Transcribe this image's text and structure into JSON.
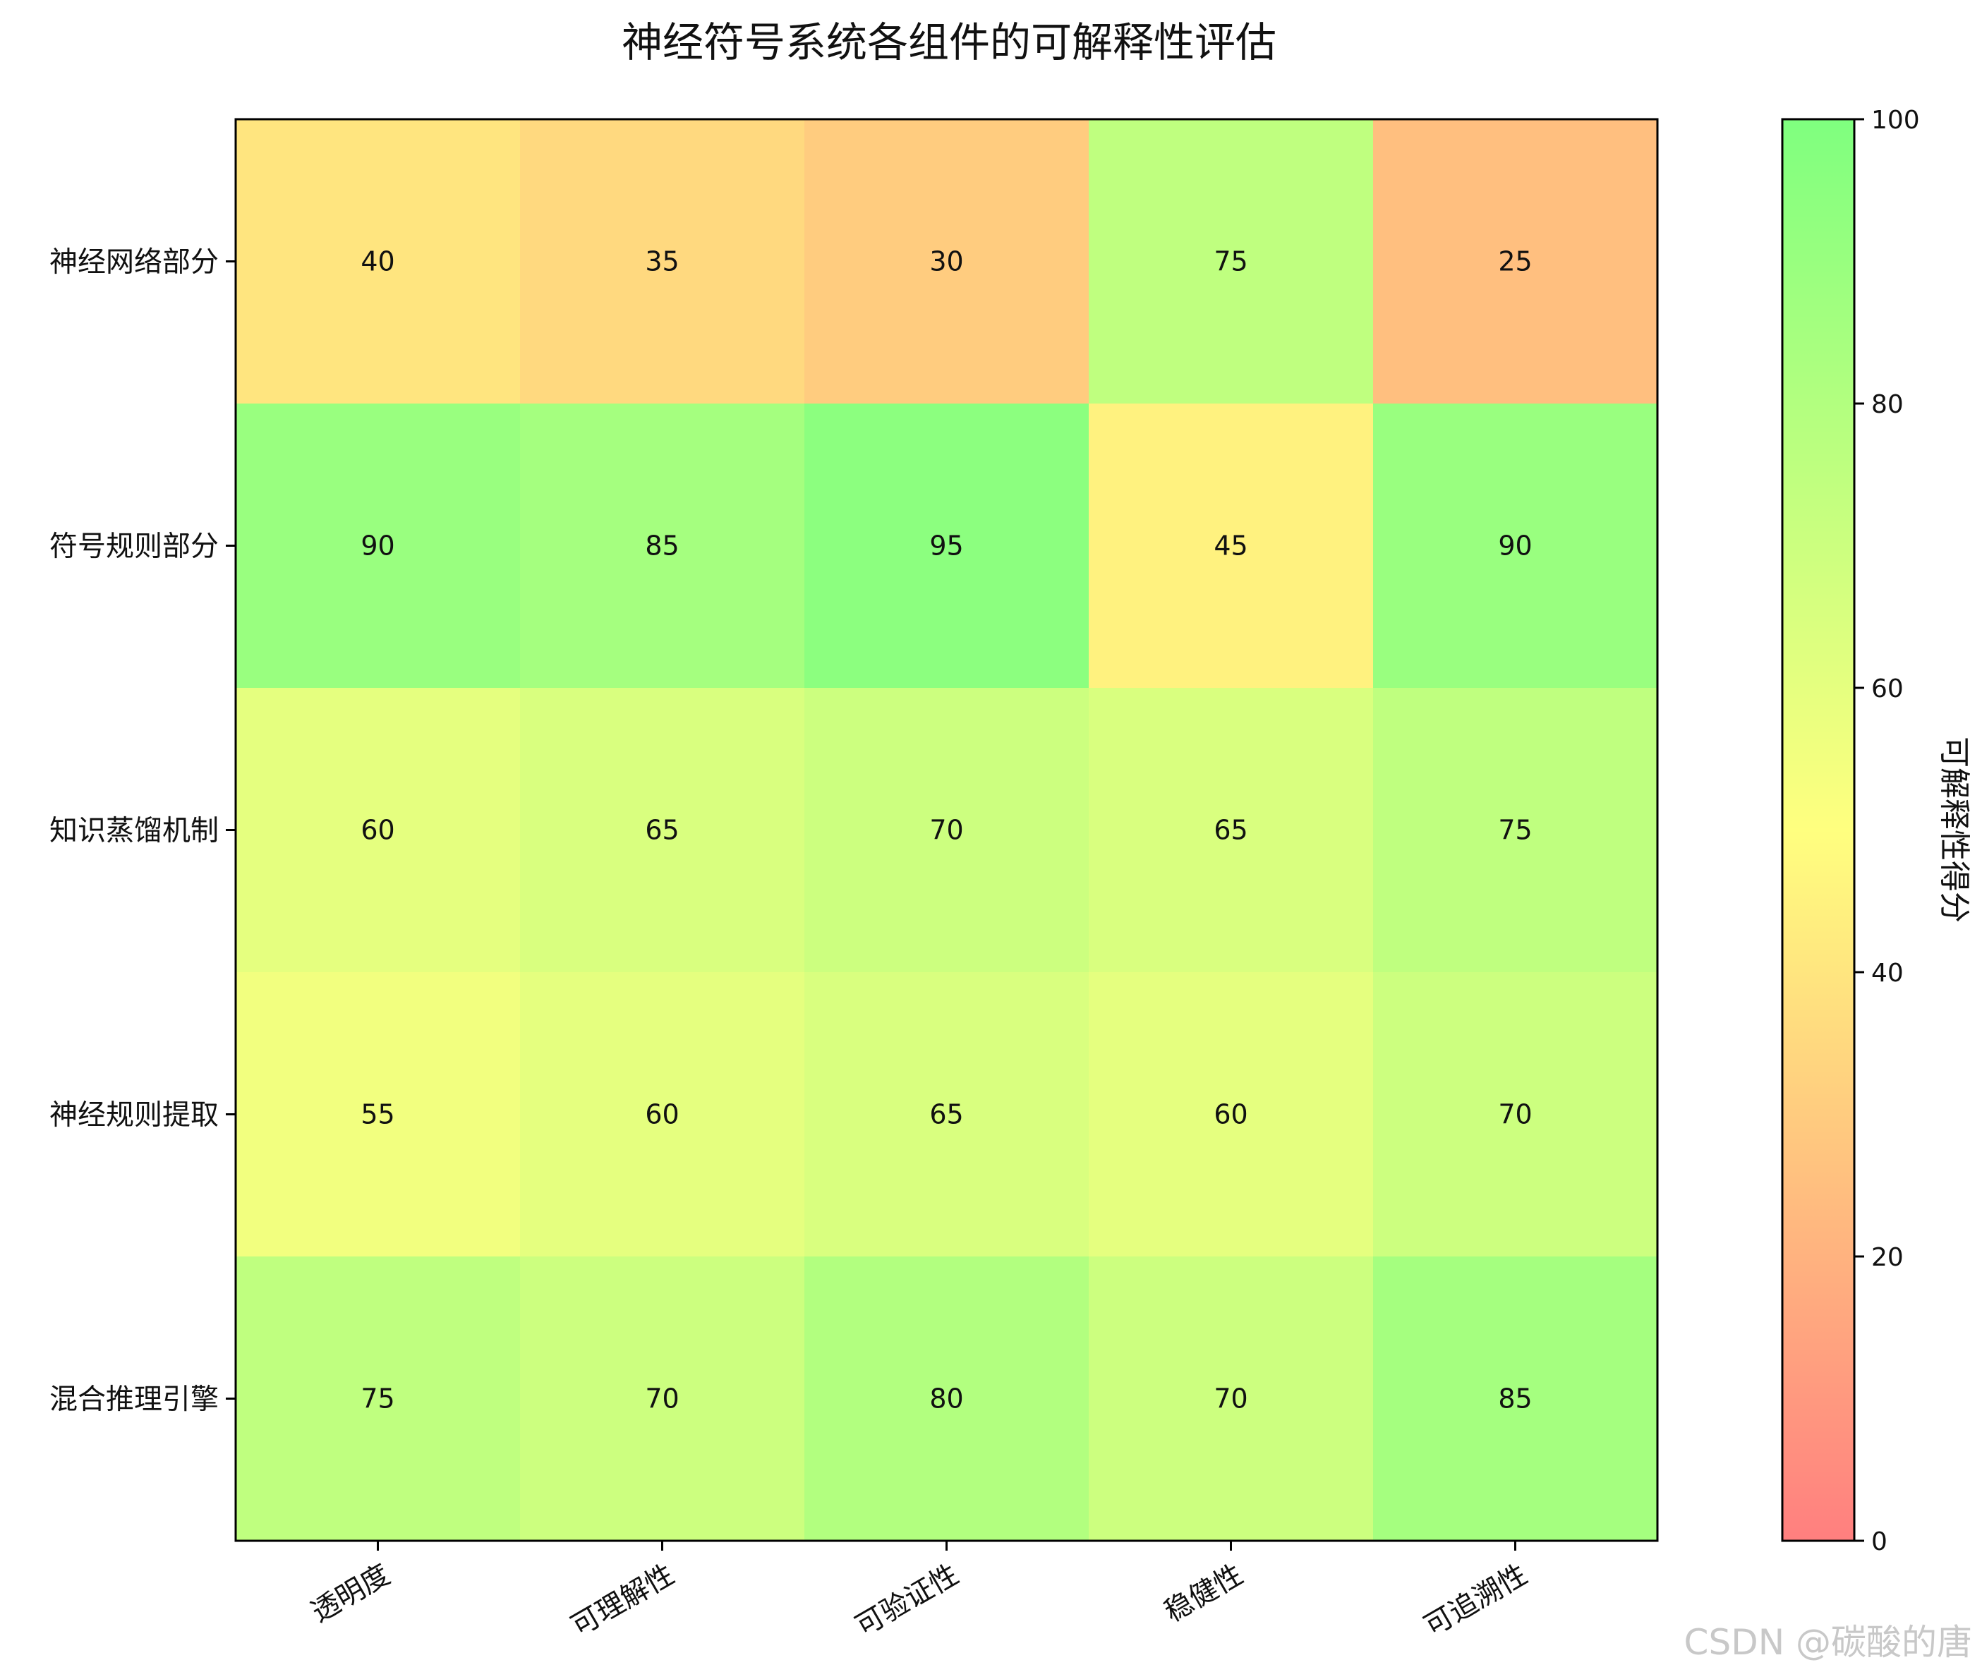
{
  "chart_data": {
    "type": "heatmap",
    "title": "神经符号系统各组件的可解释性评估",
    "rows": [
      "神经网络部分",
      "符号规则部分",
      "知识蒸馏机制",
      "神经规则提取",
      "混合推理引擎"
    ],
    "columns": [
      "透明度",
      "可理解性",
      "可验证性",
      "稳健性",
      "可追溯性"
    ],
    "values": [
      [
        40,
        35,
        30,
        75,
        25
      ],
      [
        90,
        85,
        95,
        45,
        90
      ],
      [
        60,
        65,
        70,
        65,
        75
      ],
      [
        55,
        60,
        65,
        60,
        70
      ],
      [
        75,
        70,
        80,
        70,
        85
      ]
    ],
    "colorbar": {
      "label": "可解释性得分",
      "range": [
        0,
        100
      ],
      "ticks": [
        0,
        20,
        40,
        60,
        80,
        100
      ],
      "colors": [
        "#ff7f7f",
        "#ffff7f",
        "#7fff7f"
      ]
    }
  },
  "watermark": "CSDN @碳酸的唐"
}
